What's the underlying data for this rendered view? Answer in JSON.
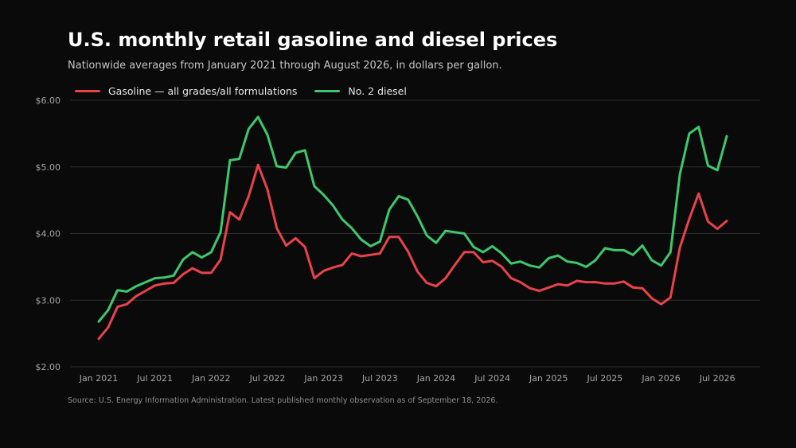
{
  "header": {
    "title": "U.S. monthly retail gasoline and diesel prices",
    "subtitle": "Nationwide averages from January 2021 through August 2026, in dollars per gallon."
  },
  "footer": {
    "source": "Source: U.S. Energy Information Administration. Latest published monthly observation as of September 18, 2026."
  },
  "chart_data": {
    "type": "line",
    "title": "U.S. monthly retail gasoline and diesel prices",
    "subtitle": "Nationwide averages from January 2021 through August 2026, in dollars per gallon.",
    "xlabel": "",
    "ylabel": "",
    "x_start": "2021-01",
    "ylim": [
      2.0,
      6.0
    ],
    "yticks": [
      2,
      3,
      4,
      5,
      6
    ],
    "ytick_labels": [
      "$2.00",
      "$3.00",
      "$4.00",
      "$5.00",
      "$6.00"
    ],
    "xtick_labels": [
      "Jan 2021",
      "Jul 2021",
      "Jan 2022",
      "Jul 2022",
      "Jan 2023",
      "Jul 2023",
      "Jan 2024",
      "Jul 2024",
      "Jan 2025",
      "Jul 2025",
      "Jan 2026",
      "Jul 2026"
    ],
    "xtick_dates": [
      "2021-01",
      "2021-07",
      "2022-01",
      "2022-07",
      "2023-01",
      "2023-07",
      "2024-01",
      "2024-07",
      "2025-01",
      "2025-07",
      "2026-01",
      "2026-07"
    ],
    "grid": "horizontal",
    "legend_position": "top-left",
    "series": [
      {
        "name": "Gasoline — all grades/all formulations",
        "color": "#e8434a",
        "values": [
          2.42,
          2.59,
          2.9,
          2.94,
          3.06,
          3.14,
          3.22,
          3.25,
          3.26,
          3.39,
          3.48,
          3.41,
          3.41,
          3.61,
          4.32,
          4.21,
          4.56,
          5.03,
          4.66,
          4.08,
          3.82,
          3.93,
          3.8,
          3.33,
          3.44,
          3.49,
          3.53,
          3.7,
          3.66,
          3.68,
          3.7,
          3.95,
          3.95,
          3.73,
          3.43,
          3.26,
          3.21,
          3.33,
          3.53,
          3.72,
          3.72,
          3.57,
          3.59,
          3.5,
          3.33,
          3.27,
          3.18,
          3.14,
          3.19,
          3.24,
          3.22,
          3.29,
          3.27,
          3.27,
          3.25,
          3.25,
          3.28,
          3.19,
          3.18,
          3.03,
          2.94,
          3.04,
          3.79,
          4.22,
          4.6,
          4.18,
          4.07,
          4.19
        ]
      },
      {
        "name": "No. 2 diesel",
        "color": "#3ec86e",
        "values": [
          2.68,
          2.85,
          3.15,
          3.13,
          3.21,
          3.27,
          3.33,
          3.34,
          3.37,
          3.61,
          3.72,
          3.64,
          3.72,
          4.02,
          5.1,
          5.12,
          5.57,
          5.75,
          5.48,
          5.01,
          4.99,
          5.21,
          5.25,
          4.71,
          4.58,
          4.42,
          4.21,
          4.08,
          3.91,
          3.81,
          3.88,
          4.36,
          4.56,
          4.51,
          4.26,
          3.97,
          3.86,
          4.04,
          4.02,
          4.0,
          3.8,
          3.72,
          3.81,
          3.7,
          3.55,
          3.58,
          3.52,
          3.49,
          3.63,
          3.67,
          3.58,
          3.56,
          3.5,
          3.6,
          3.78,
          3.75,
          3.75,
          3.68,
          3.82,
          3.6,
          3.52,
          3.72,
          4.89,
          5.5,
          5.6,
          5.02,
          4.95,
          5.46
        ]
      }
    ]
  }
}
